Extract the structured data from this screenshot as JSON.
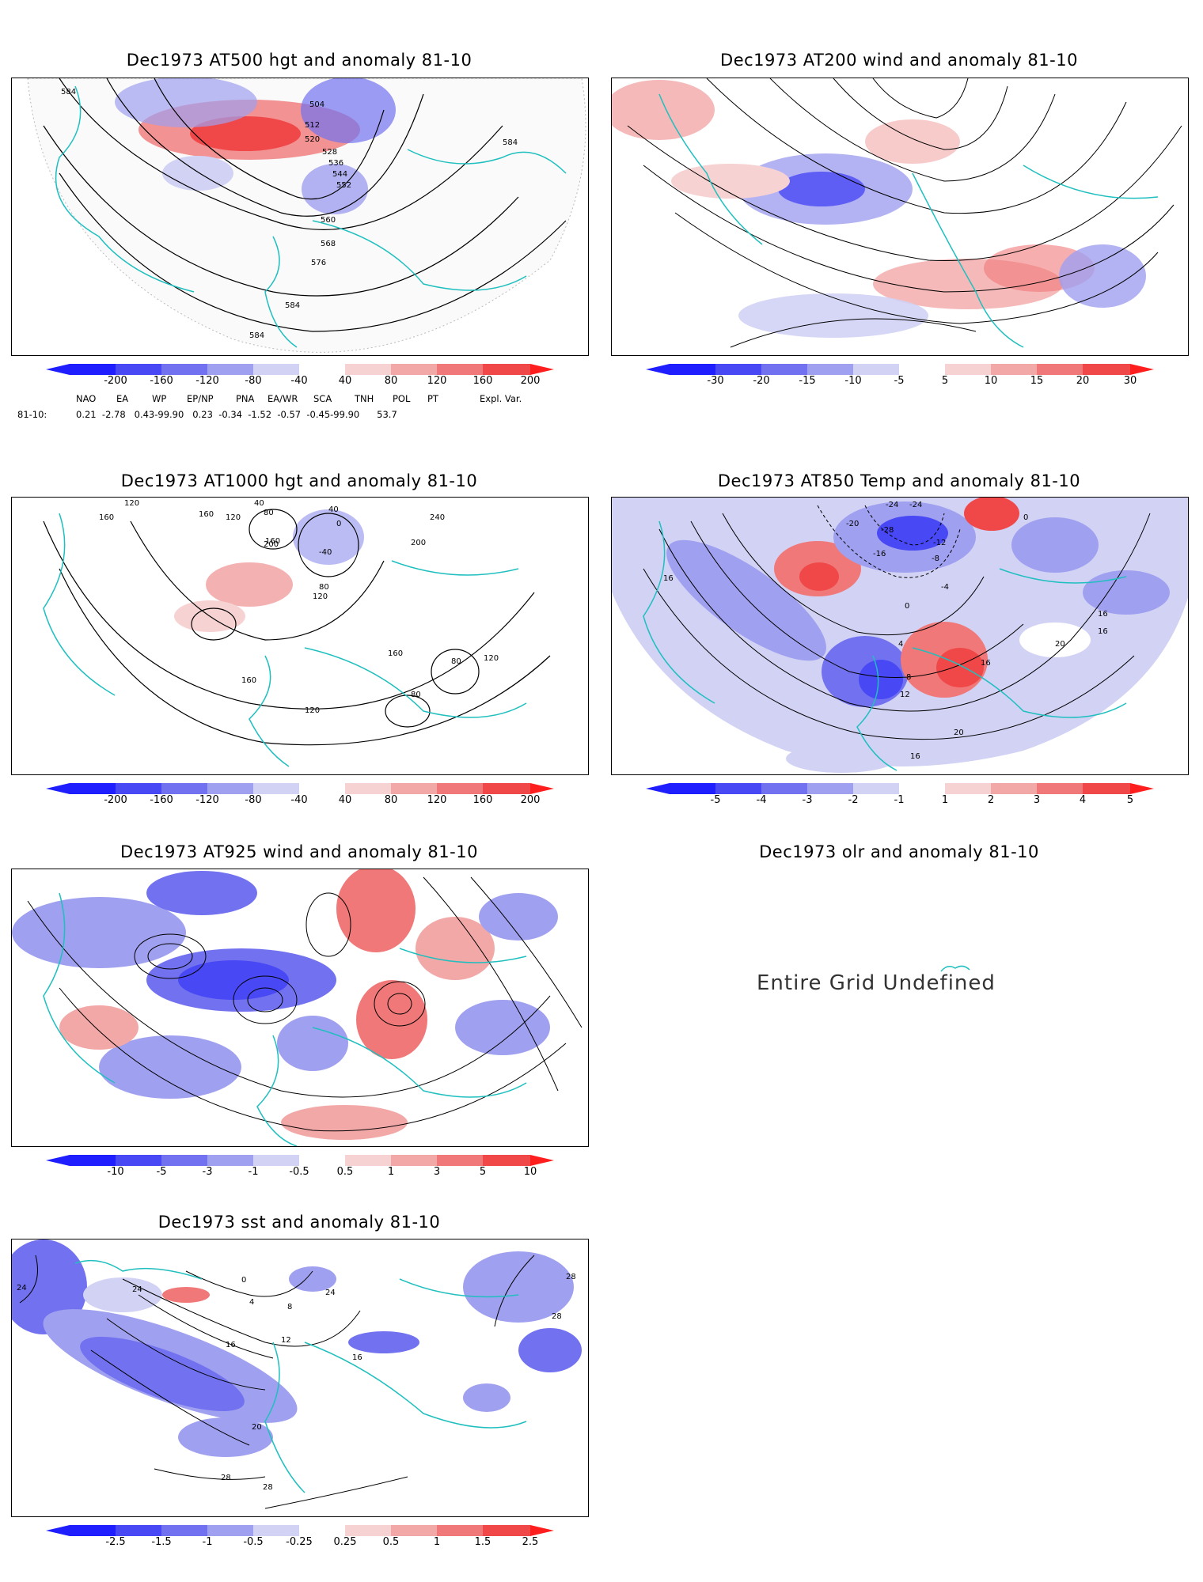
{
  "panels": [
    {
      "id": "p500",
      "title": "Dec1973 AT500 hgt and anomaly 81-10",
      "contour_labels": [
        "584",
        "504",
        "512",
        "520",
        "528",
        "536",
        "544",
        "552",
        "560",
        "568",
        "576",
        "584",
        "584",
        "584"
      ],
      "colorbar": [
        "-200",
        "-160",
        "-120",
        "-80",
        "-40",
        "40",
        "80",
        "120",
        "160",
        "200"
      ]
    },
    {
      "id": "p200",
      "title": "Dec1973 AT200 wind and anomaly 81-10",
      "colorbar": [
        "-30",
        "-20",
        "-15",
        "-10",
        "-5",
        "5",
        "10",
        "15",
        "20",
        "30"
      ]
    },
    {
      "id": "p1000",
      "title": "Dec1973 AT1000 hgt and anomaly 81-10",
      "contour_labels": [
        "120",
        "160",
        "160",
        "120",
        "80",
        "40",
        "40",
        "0",
        "-40",
        "160",
        "80",
        "120",
        "200",
        "240",
        "200",
        "160",
        "160",
        "80",
        "120",
        "80",
        "120"
      ],
      "colorbar": [
        "-200",
        "-160",
        "-120",
        "-80",
        "-40",
        "40",
        "80",
        "120",
        "160",
        "200"
      ]
    },
    {
      "id": "p850",
      "title": "Dec1973 AT850 Temp and anomaly 81-10",
      "contour_labels": [
        "-24",
        "-24",
        "-20",
        "-28",
        "-16",
        "-12",
        "-8",
        "-4",
        "0",
        "0",
        "16",
        "4",
        "8",
        "12",
        "16",
        "20",
        "16",
        "20",
        "16",
        "16"
      ],
      "colorbar": [
        "-5",
        "-4",
        "-3",
        "-2",
        "-1",
        "1",
        "2",
        "3",
        "4",
        "5"
      ]
    },
    {
      "id": "p925",
      "title": "Dec1973 AT925 wind and anomaly 81-10",
      "colorbar": [
        "-10",
        "-5",
        "-3",
        "-1",
        "-0.5",
        "0.5",
        "1",
        "3",
        "5",
        "10"
      ]
    },
    {
      "id": "polr",
      "title": "Dec1973 olr and anomaly 81-10",
      "message": "Entire Grid Undefined"
    },
    {
      "id": "psst",
      "title": "Dec1973 sst and anomaly 81-10",
      "contour_labels": [
        "24",
        "24",
        "0",
        "4",
        "8",
        "12",
        "16",
        "20",
        "24",
        "28",
        "28",
        "28",
        "28",
        "16"
      ],
      "colorbar": [
        "-2.5",
        "-1.5",
        "-1",
        "-0.5",
        "-0.25",
        "0.25",
        "0.5",
        "1",
        "1.5",
        "2.5"
      ]
    }
  ],
  "teleconnection_indices": {
    "header": [
      "NAO",
      "EA",
      "WP",
      "EP/NP",
      "PNA",
      "EA/WR",
      "SCA",
      "TNH",
      "POL",
      "PT",
      "Expl. Var."
    ],
    "row_label": "81-10:",
    "values_text": "0.21  -2.78   0.43-99.90   0.23  -0.34  -1.52  -0.57  -0.45-99.90      53.7"
  },
  "colors": {
    "coast": "#1fbfbf",
    "blue_scale": [
      "#1e1eff",
      "#4848f5",
      "#7272f0",
      "#a0a0f0",
      "#d2d2f5"
    ],
    "red_scale": [
      "#f7d2d2",
      "#f3a8a8",
      "#f07878",
      "#f04848",
      "#ff1e1e"
    ]
  }
}
